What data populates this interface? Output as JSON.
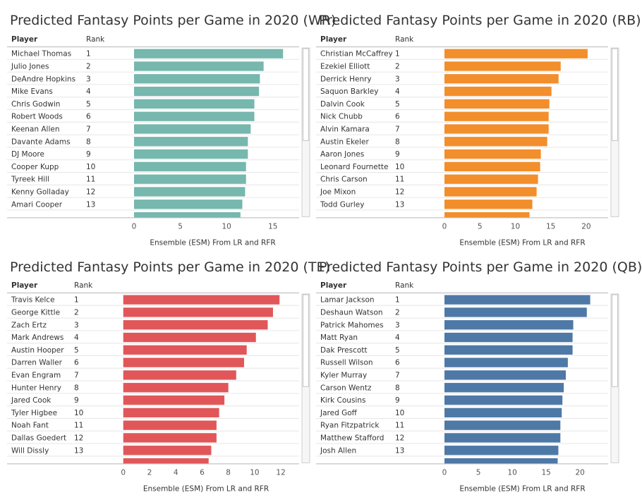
{
  "panels": [
    {
      "title": "Predicted Fantasy Points per Game in 2020 (WR)",
      "col_player": "Player",
      "col_rank": "Rank",
      "color": "#76b7ae",
      "chart_data": {
        "type": "bar",
        "orientation": "horizontal",
        "categories": [
          "Michael Thomas",
          "Julio Jones",
          "DeAndre Hopkins",
          "Mike Evans",
          "Chris Godwin",
          "Robert Woods",
          "Keenan Allen",
          "Davante Adams",
          "DJ Moore",
          "Cooper Kupp",
          "Tyreek Hill",
          "Kenny Golladay",
          "Amari Cooper"
        ],
        "ranks": [
          "1",
          "2",
          "3",
          "4",
          "5",
          "6",
          "7",
          "8",
          "9",
          "10",
          "11",
          "12",
          "13"
        ],
        "values": [
          16.1,
          14.0,
          13.6,
          13.5,
          13.0,
          13.0,
          12.6,
          12.3,
          12.3,
          12.1,
          12.1,
          12.0,
          11.7
        ],
        "partial_next_value": 11.5,
        "xlim": [
          0,
          17
        ],
        "ticks": [
          0,
          5,
          10,
          15
        ],
        "xlabel": "Ensemble (ESM) From LR and RFR"
      }
    },
    {
      "title": "Predicted Fantasy Points per Game in 2020 (RB)",
      "col_player": "Player",
      "col_rank": "Rank",
      "color": "#f28e2b",
      "chart_data": {
        "type": "bar",
        "orientation": "horizontal",
        "categories": [
          "Christian McCaffrey",
          "Ezekiel Elliott",
          "Derrick Henry",
          "Saquon Barkley",
          "Dalvin Cook",
          "Nick Chubb",
          "Alvin Kamara",
          "Austin Ekeler",
          "Aaron Jones",
          "Leonard Fournette",
          "Chris Carson",
          "Joe Mixon",
          "Todd Gurley"
        ],
        "ranks": [
          "1",
          "2",
          "3",
          "4",
          "5",
          "6",
          "7",
          "8",
          "9",
          "10",
          "11",
          "12",
          "13"
        ],
        "values": [
          20.2,
          16.4,
          16.1,
          15.1,
          14.8,
          14.7,
          14.7,
          14.5,
          13.6,
          13.5,
          13.2,
          13.0,
          12.4
        ],
        "partial_next_value": 12.0,
        "xlim": [
          0,
          22
        ],
        "ticks": [
          0,
          5,
          10,
          15,
          20
        ],
        "xlabel": "Ensemble (ESM) From LR and RFR"
      }
    },
    {
      "title": "Predicted Fantasy Points per Game in 2020 (TE)",
      "col_player": "Player",
      "col_rank": "Rank",
      "color": "#e15759",
      "chart_data": {
        "type": "bar",
        "orientation": "horizontal",
        "categories": [
          "Travis Kelce",
          "George Kittle",
          "Zach Ertz",
          "Mark Andrews",
          "Austin Hooper",
          "Darren Waller",
          "Evan Engram",
          "Hunter Henry",
          "Jared Cook",
          "Tyler Higbee",
          "Noah Fant",
          "Dallas Goedert",
          "Will Dissly"
        ],
        "ranks": [
          "1",
          "2",
          "3",
          "4",
          "5",
          "6",
          "7",
          "8",
          "9",
          "10",
          "11",
          "12",
          "13"
        ],
        "values": [
          11.9,
          11.4,
          11.0,
          10.1,
          9.4,
          9.2,
          8.6,
          8.0,
          7.7,
          7.3,
          7.1,
          7.1,
          6.7
        ],
        "partial_next_value": 6.5,
        "xlim": [
          -0.2,
          12.8
        ],
        "ticks": [
          0,
          2,
          4,
          6,
          8,
          10,
          12
        ],
        "xlabel": "Ensemble (ESM) From LR and RFR"
      }
    },
    {
      "title": "Predicted Fantasy Points per Game in 2020 (QB)",
      "col_player": "Player",
      "col_rank": "Rank",
      "color": "#4e79a7",
      "chart_data": {
        "type": "bar",
        "orientation": "horizontal",
        "categories": [
          "Lamar Jackson",
          "Deshaun Watson",
          "Patrick Mahomes",
          "Matt Ryan",
          "Dak Prescott",
          "Russell Wilson",
          "Kyler Murray",
          "Carson Wentz",
          "Kirk Cousins",
          "Jared Goff",
          "Ryan Fitzpatrick",
          "Matthew Stafford",
          "Josh Allen"
        ],
        "ranks": [
          "1",
          "2",
          "3",
          "4",
          "5",
          "6",
          "7",
          "8",
          "9",
          "10",
          "11",
          "12",
          "13"
        ],
        "values": [
          21.5,
          21.0,
          19.0,
          18.9,
          18.9,
          18.2,
          17.9,
          17.6,
          17.4,
          17.3,
          17.1,
          17.1,
          16.8
        ],
        "partial_next_value": 16.7,
        "xlim": [
          0,
          23
        ],
        "ticks": [
          0,
          5,
          10,
          15,
          20
        ],
        "xlabel": "Ensemble (ESM) From LR and RFR"
      }
    }
  ]
}
